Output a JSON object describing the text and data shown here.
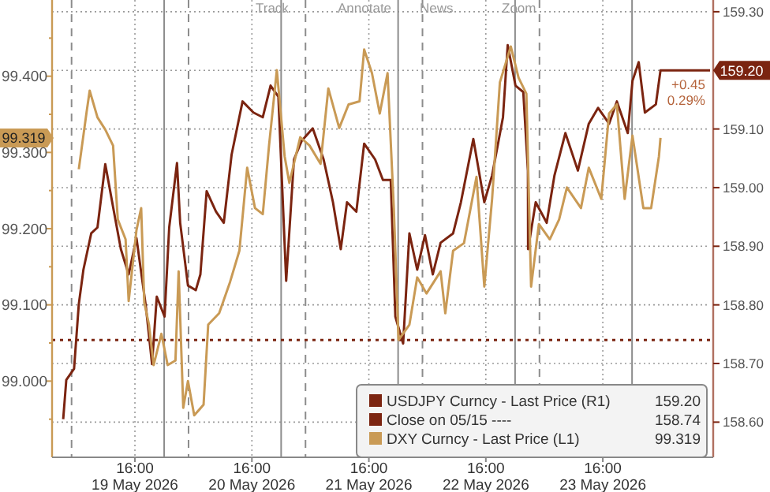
{
  "chart_data": {
    "type": "line",
    "xlim": [
      "2026-05-18T23:00",
      "2026-05-24T14:00"
    ],
    "xticks": [
      {
        "value": "2026-05-19T16:00",
        "label": "16:00\n19 May 2026"
      },
      {
        "value": "2026-05-20T16:00",
        "label": "16:00\n20 May 2026"
      },
      {
        "value": "2026-05-21T16:00",
        "label": "16:00\n21 May 2026"
      },
      {
        "value": "2026-05-22T16:00",
        "label": "16:00\n22 May 2026"
      },
      {
        "value": "2026-05-23T16:00",
        "label": "16:00\n23 May 2026"
      }
    ],
    "ylim": [
      98.9,
      99.5
    ],
    "yticks": [
      {
        "value": 98.95,
        "label": null
      },
      {
        "value": 99.0,
        "label": "99.000"
      },
      {
        "value": 99.05,
        "label": null
      },
      {
        "value": 99.1,
        "label": "99.100"
      },
      {
        "value": 99.15,
        "label": null
      },
      {
        "value": 99.2,
        "label": "99.200"
      },
      {
        "value": 99.25,
        "label": null
      },
      {
        "value": 99.3,
        "label": "99.300"
      },
      {
        "value": 99.35,
        "label": null
      },
      {
        "value": 99.4,
        "label": "99.400"
      },
      {
        "value": 99.45,
        "label": null
      }
    ],
    "y2lim": [
      158.54,
      159.32
    ],
    "y2ticks": [
      {
        "value": 158.6,
        "label": "158.60"
      },
      {
        "value": 158.7,
        "label": "158.70"
      },
      {
        "value": 158.8,
        "label": "158.80"
      },
      {
        "value": 158.9,
        "label": "158.90"
      },
      {
        "value": 159.0,
        "label": "159.00"
      },
      {
        "value": 159.1,
        "label": "159.10"
      },
      {
        "value": 159.2,
        "label": null
      },
      {
        "value": 159.3,
        "label": "159.30"
      }
    ],
    "grid": true,
    "legend": "bottom right",
    "marker": "none",
    "series": [
      {
        "name": "USDJPY Curncy - Last Price (R1)",
        "color": "#7b2410",
        "axis": "y2",
        "line_style": "solid",
        "x": [
          "2026-05-19T01:17",
          "2026-05-19T01:55",
          "2026-05-19T03:31",
          "2026-05-19T04:29",
          "2026-05-19T05:26",
          "2026-05-19T07:02",
          "2026-05-19T08:19",
          "2026-05-19T09:55",
          "2026-05-19T11:31",
          "2026-05-19T13:07",
          "2026-05-19T14:43",
          "2026-05-19T16:19",
          "2026-05-19T18:14",
          "2026-05-19T19:31",
          "2026-05-19T20:29",
          "2026-05-19T22:05",
          "2026-05-19T23:02",
          "2026-05-20T00:38",
          "2026-05-20T01:17",
          "2026-05-20T02:53",
          "2026-05-20T04:29",
          "2026-05-20T05:26",
          "2026-05-20T06:43",
          "2026-05-20T08:38",
          "2026-05-20T10:14",
          "2026-05-20T11:50",
          "2026-05-20T14:05",
          "2026-05-20T16:19",
          "2026-05-20T18:14",
          "2026-05-20T19:50",
          "2026-05-20T21:26",
          "2026-05-20T23:02",
          "2026-05-21T00:38",
          "2026-05-21T02:14",
          "2026-05-21T04:29",
          "2026-05-21T06:43",
          "2026-05-21T08:38",
          "2026-05-21T10:14",
          "2026-05-21T11:31",
          "2026-05-21T13:26",
          "2026-05-21T15:02",
          "2026-05-21T17:17",
          "2026-05-21T18:53",
          "2026-05-21T20:29",
          "2026-05-21T21:26",
          "2026-05-21T23:02",
          "2026-05-22T00:19",
          "2026-05-22T01:55",
          "2026-05-22T03:31",
          "2026-05-22T05:07",
          "2026-05-22T06:43",
          "2026-05-22T09:17",
          "2026-05-22T10:53",
          "2026-05-22T13:26",
          "2026-05-22T15:41",
          "2026-05-22T17:17",
          "2026-05-22T19:31",
          "2026-05-22T20:29",
          "2026-05-22T22:05",
          "2026-05-22T23:41",
          "2026-05-23T00:38",
          "2026-05-23T00:40",
          "2026-05-23T02:14",
          "2026-05-23T04:29",
          "2026-05-23T06:05",
          "2026-05-23T08:19",
          "2026-05-23T10:53",
          "2026-05-23T13:07",
          "2026-05-23T15:02",
          "2026-05-23T17:17",
          "2026-05-23T18:53",
          "2026-05-23T21:07",
          "2026-05-23T22:05",
          "2026-05-23T23:22",
          "2026-05-24T00:38",
          "2026-05-24T02:53",
          "2026-05-24T03:50",
          "2026-05-24T14:00"
        ],
        "values": [
          158.605,
          158.672,
          158.691,
          158.801,
          158.86,
          158.922,
          158.932,
          159.04,
          158.967,
          158.895,
          158.852,
          158.914,
          158.798,
          158.699,
          158.814,
          158.78,
          158.932,
          159.042,
          158.94,
          158.833,
          158.825,
          158.852,
          158.994,
          158.959,
          158.94,
          159.056,
          159.147,
          159.128,
          159.12,
          159.174,
          159.155,
          158.841,
          159.048,
          159.08,
          159.101,
          159.048,
          158.975,
          158.895,
          158.975,
          158.959,
          159.075,
          159.048,
          159.013,
          159.013,
          158.78,
          158.734,
          158.922,
          158.86,
          158.919,
          158.852,
          158.906,
          158.922,
          158.975,
          159.083,
          158.975,
          159.021,
          159.12,
          159.243,
          159.174,
          159.163,
          159.029,
          158.895,
          158.975,
          158.94,
          159.021,
          159.093,
          159.029,
          159.109,
          159.136,
          159.109,
          159.147,
          159.093,
          159.182,
          159.214,
          159.128,
          159.142,
          159.2,
          159.2
        ]
      },
      {
        "name": "Close on 05/15 ----",
        "color": "#7b2410",
        "axis": "y2",
        "line_style": "dotted",
        "x": [
          "2026-05-18T23:00",
          "2026-05-24T14:00"
        ],
        "values": [
          158.74,
          158.74
        ]
      },
      {
        "name": "DXY Curncy - Last Price (L1)",
        "color": "#c99a55",
        "line_style": "solid",
        "x": [
          "2026-05-19T04:29",
          "2026-05-19T06:05",
          "2026-05-19T06:43",
          "2026-05-19T08:19",
          "2026-05-19T09:55",
          "2026-05-19T11:31",
          "2026-05-19T12:29",
          "2026-05-19T14:05",
          "2026-05-19T14:43",
          "2026-05-19T16:19",
          "2026-05-19T17:17",
          "2026-05-19T17:55",
          "2026-05-19T18:53",
          "2026-05-19T19:50",
          "2026-05-19T21:26",
          "2026-05-19T22:43",
          "2026-05-20T00:19",
          "2026-05-20T00:58",
          "2026-05-20T01:55",
          "2026-05-20T02:53",
          "2026-05-20T04:10",
          "2026-05-20T06:05",
          "2026-05-20T07:02",
          "2026-05-20T09:17",
          "2026-05-20T11:31",
          "2026-05-20T13:26",
          "2026-05-20T15:02",
          "2026-05-20T16:38",
          "2026-05-20T18:14",
          "2026-05-20T19:31",
          "2026-05-20T21:07",
          "2026-05-20T22:43",
          "2026-05-20T23:41",
          "2026-05-21T01:55",
          "2026-05-21T03:50",
          "2026-05-21T06:05",
          "2026-05-21T07:41",
          "2026-05-21T09:55",
          "2026-05-21T11:50",
          "2026-05-21T14:05",
          "2026-05-21T15:02",
          "2026-05-21T16:38",
          "2026-05-21T18:14",
          "2026-05-21T19:50",
          "2026-05-21T21:07",
          "2026-05-21T22:05",
          "2026-05-22T00:19",
          "2026-05-22T01:55",
          "2026-05-22T03:50",
          "2026-05-22T06:43",
          "2026-05-22T07:41",
          "2026-05-22T09:17",
          "2026-05-22T11:31",
          "2026-05-22T14:05",
          "2026-05-22T15:41",
          "2026-05-22T17:17",
          "2026-05-22T18:53",
          "2026-05-22T21:07",
          "2026-05-22T22:43",
          "2026-05-23T00:19",
          "2026-05-23T01:17",
          "2026-05-23T02:53",
          "2026-05-23T05:07",
          "2026-05-23T07:02",
          "2026-05-23T08:38",
          "2026-05-23T11:31",
          "2026-05-23T13:07",
          "2026-05-23T15:41",
          "2026-05-23T17:17",
          "2026-05-23T18:53",
          "2026-05-23T20:29",
          "2026-05-23T22:05",
          "2026-05-24T00:19",
          "2026-05-24T01:55",
          "2026-05-24T03:31",
          "2026-05-24T03:50"
        ],
        "values": [
          99.278,
          99.353,
          99.381,
          99.346,
          99.33,
          99.309,
          99.212,
          99.186,
          99.105,
          99.198,
          99.227,
          99.103,
          99.074,
          99.021,
          99.062,
          99.021,
          99.027,
          99.144,
          98.965,
          99.0,
          98.955,
          98.969,
          99.074,
          99.089,
          99.13,
          99.171,
          99.28,
          99.227,
          99.219,
          99.309,
          99.408,
          99.295,
          99.26,
          99.32,
          99.309,
          99.285,
          99.384,
          99.332,
          99.363,
          99.367,
          99.435,
          99.404,
          99.351,
          99.404,
          99.227,
          99.054,
          99.074,
          99.136,
          99.115,
          99.144,
          99.089,
          99.171,
          99.181,
          99.268,
          99.124,
          99.239,
          99.392,
          99.439,
          99.398,
          99.377,
          99.124,
          99.206,
          99.186,
          99.212,
          99.254,
          99.227,
          99.28,
          99.239,
          99.351,
          99.363,
          99.239,
          99.322,
          99.227,
          99.227,
          99.295,
          99.319
        ]
      }
    ],
    "ref_lines": [
      {
        "axis": "x",
        "value": "2026-05-19T03:00",
        "line_style": "dashed",
        "color": "#8c8c8c"
      },
      {
        "axis": "x",
        "value": "2026-05-19T22:00",
        "line_style": "solid",
        "color": "#8c8c8c"
      },
      {
        "axis": "x",
        "value": "2026-05-20T03:00",
        "line_style": "dashed",
        "color": "#8c8c8c"
      },
      {
        "axis": "x",
        "value": "2026-05-20T22:00",
        "line_style": "solid",
        "color": "#8c8c8c"
      },
      {
        "axis": "x",
        "value": "2026-05-21T03:00",
        "line_style": "dashed",
        "color": "#8c8c8c"
      },
      {
        "axis": "x",
        "value": "2026-05-21T22:00",
        "line_style": "solid",
        "color": "#8c8c8c"
      },
      {
        "axis": "x",
        "value": "2026-05-22T03:00",
        "line_style": "dashed",
        "color": "#8c8c8c"
      },
      {
        "axis": "x",
        "value": "2026-05-22T22:00",
        "line_style": "solid",
        "color": "#8c8c8c"
      },
      {
        "axis": "x",
        "value": "2026-05-23T03:00",
        "line_style": "dashed",
        "color": "#8c8c8c"
      },
      {
        "axis": "x",
        "value": "2026-05-23T22:00",
        "line_style": "solid",
        "color": "#8c8c8c"
      }
    ],
    "annotations": [
      "159.20",
      "158.74",
      "99.319",
      "+0.45",
      "0.29%",
      "Track",
      "Annotate",
      "News",
      "Zoom"
    ]
  }
}
